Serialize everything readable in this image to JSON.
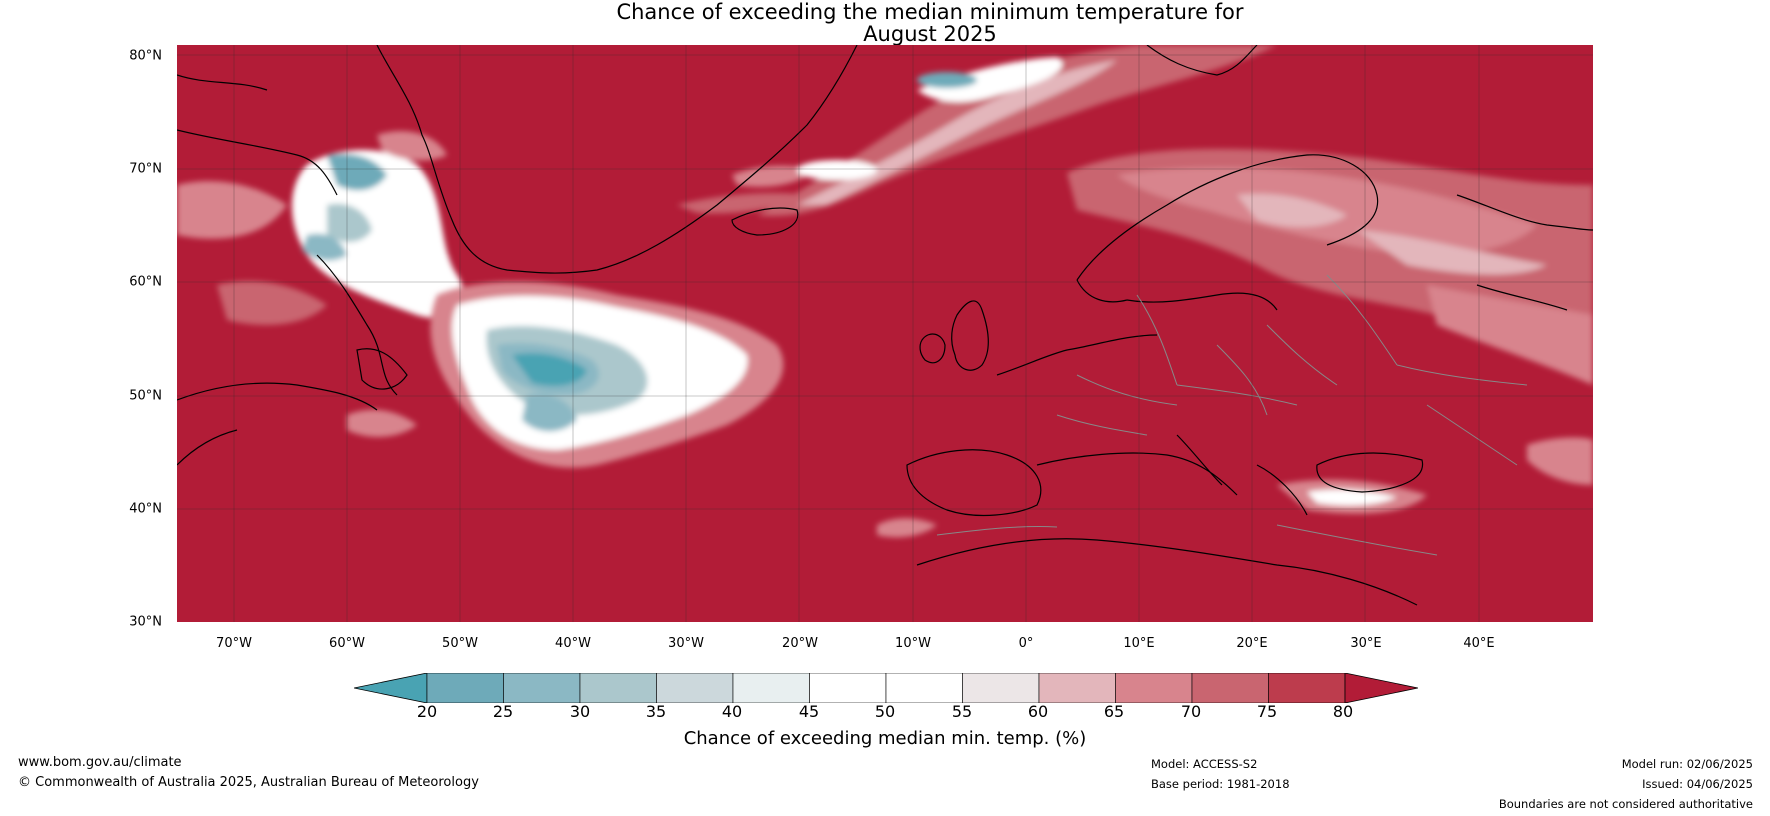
{
  "title": {
    "line1": "Chance of exceeding the median minimum temperature for",
    "line2": "August 2025"
  },
  "map": {
    "region": "North Atlantic and Europe",
    "background_color": "#b21c37",
    "coastline_color": "#000000",
    "border_color": "#888888",
    "lat_labels": [
      "80°N",
      "70°N",
      "60°N",
      "50°N",
      "40°N",
      "30°N"
    ],
    "lon_labels": [
      "70°W",
      "60°W",
      "50°W",
      "40°W",
      "30°W",
      "20°W",
      "10°W",
      "0°",
      "10°E",
      "20°E",
      "30°E",
      "40°E"
    ]
  },
  "colorbar": {
    "ticks": [
      "20",
      "25",
      "30",
      "35",
      "40",
      "45",
      "50",
      "55",
      "60",
      "65",
      "70",
      "75",
      "80"
    ],
    "colors": [
      "#49a3b3",
      "#6eaab9",
      "#8bb8c4",
      "#abc7cc",
      "#ccd8dc",
      "#e8eff0",
      "#ffffff",
      "#ffffff",
      "#ece6e7",
      "#e3b6bb",
      "#d8848d",
      "#c96570",
      "#bd3c4d",
      "#b21c37"
    ],
    "label": "Chance of exceeding median min. temp. (%)"
  },
  "footer": {
    "website": "www.bom.gov.au/climate",
    "copyright": "© Commonwealth of Australia 2025, Australian Bureau of Meteorology",
    "model": "Model: ACCESS-S2",
    "base_period": "Base period: 1981-2018",
    "model_run": "Model run: 02/06/2025",
    "issued": "Issued: 04/06/2025",
    "disclaimer": "Boundaries are not considered authoritative"
  }
}
